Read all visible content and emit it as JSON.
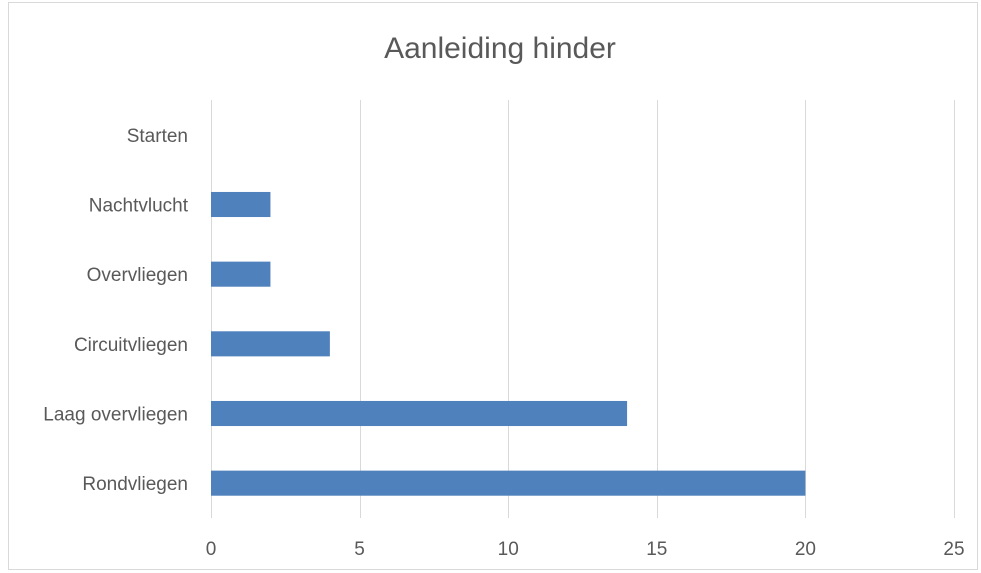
{
  "chart_data": {
    "type": "bar",
    "orientation": "horizontal",
    "title": "Aanleiding hinder",
    "categories": [
      "Starten",
      "Nachtvlucht",
      "Overvliegen",
      "Circuitvliegen",
      "Laag overvliegen",
      "Rondvliegen"
    ],
    "values": [
      0,
      2,
      2,
      4,
      14,
      20
    ],
    "xlim": [
      0,
      25
    ],
    "xticks": [
      0,
      5,
      10,
      15,
      20,
      25
    ],
    "grid": true,
    "legend": "none",
    "bar_color": "#4f81bd"
  }
}
